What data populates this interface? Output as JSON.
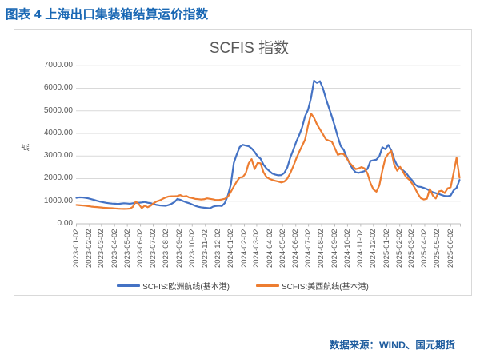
{
  "page": {
    "figure_caption": "图表 4 上海出口集装箱结算运价指数",
    "source_note": "数据来源：WIND、国元期货"
  },
  "chart": {
    "title": "SCFIS 指数",
    "y_axis": {
      "unit_label": "点",
      "tick_labels": [
        "7000.00",
        "6000.00",
        "5000.00",
        "4000.00",
        "3000.00",
        "2000.00",
        "1000.00",
        "0.00"
      ]
    },
    "x_axis": {
      "tick_labels": [
        "2023-01-02",
        "2023-02-02",
        "2023-03-02",
        "2023-04-02",
        "2023-05-02",
        "2023-06-02",
        "2023-07-02",
        "2023-08-02",
        "2023-09-02",
        "2023-10-02",
        "2023-11-02",
        "2023-12-02",
        "2024-01-02",
        "2024-02-02",
        "2024-03-02",
        "2024-04-02",
        "2024-05-02",
        "2024-06-02",
        "2024-07-02",
        "2024-08-02",
        "2024-09-02",
        "2024-10-02",
        "2024-11-02",
        "2024-12-02",
        "2025-01-02",
        "2025-02-02",
        "2025-03-02",
        "2025-04-02",
        "2025-05-02",
        "2025-06-02"
      ]
    },
    "legend": [
      {
        "label": "SCFIS:欧洲航线(基本港)",
        "color": "#4472C4"
      },
      {
        "label": "SCFIS:美西航线(基本港)",
        "color": "#ED7D31"
      }
    ]
  },
  "chart_data": {
    "type": "line",
    "title": "SCFIS 指数",
    "xlabel": "",
    "ylabel": "点",
    "ylim": [
      0,
      7000
    ],
    "y_tick_step": 1000,
    "grid": true,
    "legend_position": "bottom",
    "x": [
      "2023-01-02",
      "2023-01-09",
      "2023-01-16",
      "2023-01-23",
      "2023-01-30",
      "2023-02-06",
      "2023-02-13",
      "2023-02-20",
      "2023-02-27",
      "2023-03-06",
      "2023-03-13",
      "2023-03-20",
      "2023-03-27",
      "2023-04-03",
      "2023-04-10",
      "2023-04-17",
      "2023-04-24",
      "2023-05-01",
      "2023-05-08",
      "2023-05-15",
      "2023-05-22",
      "2023-05-29",
      "2023-06-05",
      "2023-06-12",
      "2023-06-19",
      "2023-06-26",
      "2023-07-03",
      "2023-07-10",
      "2023-07-17",
      "2023-07-24",
      "2023-07-31",
      "2023-08-07",
      "2023-08-14",
      "2023-08-21",
      "2023-08-28",
      "2023-09-04",
      "2023-09-11",
      "2023-09-18",
      "2023-09-25",
      "2023-10-02",
      "2023-10-09",
      "2023-10-16",
      "2023-10-23",
      "2023-10-30",
      "2023-11-06",
      "2023-11-13",
      "2023-11-20",
      "2023-11-27",
      "2023-12-04",
      "2023-12-11",
      "2023-12-18",
      "2023-12-25",
      "2024-01-01",
      "2024-01-08",
      "2024-01-15",
      "2024-01-22",
      "2024-01-29",
      "2024-02-05",
      "2024-02-12",
      "2024-02-19",
      "2024-02-26",
      "2024-03-04",
      "2024-03-11",
      "2024-03-18",
      "2024-03-25",
      "2024-04-01",
      "2024-04-08",
      "2024-04-15",
      "2024-04-22",
      "2024-04-29",
      "2024-05-06",
      "2024-05-13",
      "2024-05-20",
      "2024-05-27",
      "2024-06-03",
      "2024-06-10",
      "2024-06-17",
      "2024-06-24",
      "2024-07-01",
      "2024-07-08",
      "2024-07-15",
      "2024-07-22",
      "2024-07-29",
      "2024-08-05",
      "2024-08-12",
      "2024-08-19",
      "2024-08-26",
      "2024-09-02",
      "2024-09-09",
      "2024-09-16",
      "2024-09-23",
      "2024-09-30",
      "2024-10-07",
      "2024-10-14",
      "2024-10-21",
      "2024-10-28",
      "2024-11-04",
      "2024-11-11",
      "2024-11-18",
      "2024-11-25",
      "2024-12-02",
      "2024-12-09",
      "2024-12-16",
      "2024-12-23",
      "2024-12-30",
      "2025-01-06",
      "2025-01-13",
      "2025-01-20",
      "2025-01-27",
      "2025-02-03",
      "2025-02-10",
      "2025-02-17",
      "2025-02-24",
      "2025-03-03",
      "2025-03-10",
      "2025-03-17",
      "2025-03-24",
      "2025-03-31",
      "2025-04-07",
      "2025-04-14",
      "2025-04-21",
      "2025-04-28",
      "2025-05-05",
      "2025-05-12",
      "2025-05-19",
      "2025-05-26",
      "2025-06-02",
      "2025-06-09",
      "2025-06-16",
      "2025-06-23"
    ],
    "x_tick_labels": [
      "2023-01-02",
      "2023-02-02",
      "2023-03-02",
      "2023-04-02",
      "2023-05-02",
      "2023-06-02",
      "2023-07-02",
      "2023-08-02",
      "2023-09-02",
      "2023-10-02",
      "2023-11-02",
      "2023-12-02",
      "2024-01-02",
      "2024-02-02",
      "2024-03-02",
      "2024-04-02",
      "2024-05-02",
      "2024-06-02",
      "2024-07-02",
      "2024-08-02",
      "2024-09-02",
      "2024-10-02",
      "2024-11-02",
      "2024-12-02",
      "2025-01-02",
      "2025-02-02",
      "2025-03-02",
      "2025-04-02",
      "2025-05-02",
      "2025-06-02"
    ],
    "series": [
      {
        "name": "SCFIS:欧洲航线(基本港)",
        "color": "#4472C4",
        "values": [
          1148,
          1170,
          1165,
          1148,
          1126,
          1090,
          1055,
          1015,
          980,
          952,
          926,
          910,
          896,
          890,
          878,
          894,
          910,
          900,
          886,
          910,
          932,
          930,
          945,
          968,
          930,
          912,
          870,
          836,
          815,
          806,
          795,
          830,
          885,
          960,
          1100,
          1060,
          1000,
          950,
          910,
          855,
          795,
          755,
          728,
          712,
          700,
          688,
          758,
          788,
          798,
          788,
          926,
          1255,
          1740,
          2695,
          3075,
          3400,
          3495,
          3460,
          3432,
          3335,
          3180,
          2985,
          2880,
          2615,
          2450,
          2330,
          2220,
          2175,
          2145,
          2155,
          2250,
          2490,
          2925,
          3265,
          3625,
          3920,
          4270,
          4760,
          5050,
          5570,
          6335,
          6240,
          6310,
          6000,
          5540,
          5140,
          4750,
          4320,
          3850,
          3440,
          3270,
          2950,
          2660,
          2430,
          2280,
          2255,
          2290,
          2330,
          2430,
          2780,
          2810,
          2840,
          2990,
          3385,
          3300,
          3490,
          3260,
          2860,
          2580,
          2440,
          2360,
          2250,
          2070,
          1930,
          1750,
          1645,
          1630,
          1585,
          1535,
          1465,
          1395,
          1355,
          1320,
          1270,
          1230,
          1220,
          1250,
          1480,
          1590,
          1940
        ]
      },
      {
        "name": "SCFIS:美西航线(基本港)",
        "color": "#ED7D31",
        "values": [
          833,
          822,
          812,
          798,
          781,
          762,
          748,
          738,
          726,
          712,
          702,
          696,
          690,
          680,
          668,
          662,
          660,
          662,
          672,
          750,
          988,
          870,
          695,
          800,
          735,
          800,
          911,
          989,
          1032,
          1100,
          1163,
          1206,
          1216,
          1216,
          1228,
          1270,
          1205,
          1228,
          1165,
          1140,
          1102,
          1090,
          1075,
          1088,
          1126,
          1105,
          1080,
          1052,
          1055,
          1075,
          1110,
          1195,
          1415,
          1650,
          1875,
          2050,
          2069,
          2230,
          2675,
          2860,
          2420,
          2690,
          2678,
          2280,
          2070,
          1990,
          1940,
          1900,
          1870,
          1830,
          1870,
          2000,
          2240,
          2540,
          2880,
          3180,
          3450,
          3730,
          4350,
          4880,
          4690,
          4400,
          4180,
          3960,
          3740,
          3680,
          3640,
          3350,
          3050,
          3100,
          3080,
          2900,
          2700,
          2550,
          2420,
          2450,
          2510,
          2450,
          2230,
          1800,
          1520,
          1420,
          1700,
          2350,
          2890,
          3100,
          3230,
          2610,
          2350,
          2520,
          2290,
          2070,
          1960,
          1790,
          1570,
          1320,
          1130,
          1075,
          1110,
          1540,
          1250,
          1120,
          1430,
          1465,
          1360,
          1570,
          1610,
          2250,
          2920,
          2040
        ]
      }
    ]
  }
}
